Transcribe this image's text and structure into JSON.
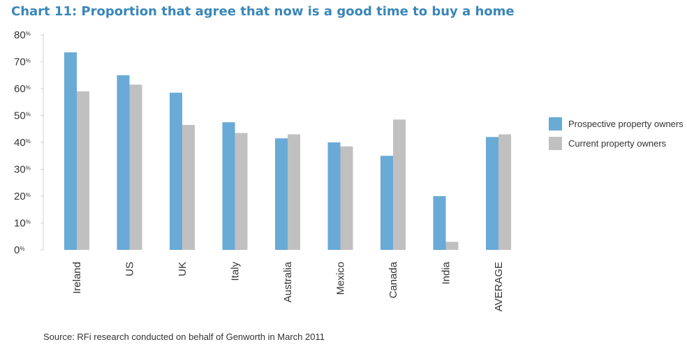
{
  "title": "Chart 11:  Proportion that agree that now is a good time to buy a home",
  "source": "Source: RFi research conducted on behalf of Genworth in March 2011",
  "colors": {
    "prospective": "#69aad6",
    "current": "#c0c0c0",
    "title": "#3a86b8",
    "axis": "#d0d0d0",
    "text": "#333333"
  },
  "chart_data": {
    "type": "bar",
    "title": "Chart 11:  Proportion that agree that now is a good time to buy a home",
    "categories": [
      "Ireland",
      "US",
      "UK",
      "Italy",
      "Australia",
      "Mexico",
      "Canada",
      "India",
      "AVERAGE"
    ],
    "series": [
      {
        "name": "Prospective property owners",
        "values": [
          73.5,
          65,
          58.5,
          47.5,
          41.5,
          40,
          35,
          20,
          42
        ]
      },
      {
        "name": "Current property owners",
        "values": [
          59,
          61.5,
          46.5,
          43.5,
          43,
          38.5,
          48.5,
          3,
          43
        ]
      }
    ],
    "yticks": [
      {
        "num": "0",
        "suffix": "%"
      },
      {
        "num": "10",
        "suffix": "%"
      },
      {
        "num": "20",
        "suffix": "%"
      },
      {
        "num": "30",
        "suffix": "%"
      },
      {
        "num": "40",
        "suffix": "%"
      },
      {
        "num": "50",
        "suffix": "%"
      },
      {
        "num": "60",
        "suffix": "%"
      },
      {
        "num": "70",
        "suffix": "%"
      },
      {
        "num": "80",
        "suffix": "%"
      }
    ],
    "ylim": [
      0,
      80
    ],
    "xlabel": "",
    "ylabel": "",
    "legend_position": "right",
    "grid": false
  }
}
